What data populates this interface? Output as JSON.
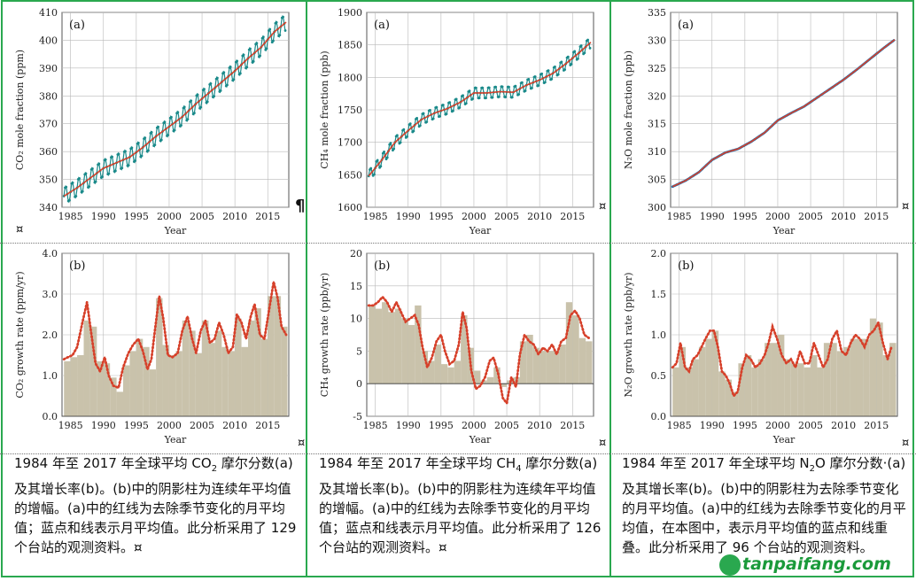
{
  "chart_data": [
    {
      "type": "line",
      "panel_label": "(a)",
      "ylabel": "CO₂ mole fraction (ppm)",
      "xlabel": "Year",
      "x_ticks": [
        "1985",
        "1990",
        "1995",
        "2000",
        "2005",
        "2010",
        "2015"
      ],
      "y_ticks": [
        "340",
        "350",
        "360",
        "370",
        "380",
        "390",
        "400",
        "410"
      ],
      "xlim": [
        1983.7,
        2018.2
      ],
      "ylim": [
        340,
        410
      ],
      "x": [
        1984,
        1986,
        1988,
        1990,
        1992,
        1994,
        1996,
        1998,
        2000,
        2002,
        2004,
        2006,
        2008,
        2010,
        2012,
        2014,
        2016,
        2017.8
      ],
      "series": [
        {
          "values": [
            344.0,
            347.0,
            350.5,
            354.0,
            356.0,
            358.0,
            361.5,
            365.5,
            369.0,
            372.5,
            377.0,
            381.0,
            385.0,
            389.0,
            393.5,
            397.5,
            403.0,
            406.5
          ],
          "color": "#d6402a"
        },
        {
          "values": [
            344.0,
            347.0,
            350.5,
            354.0,
            356.0,
            358.0,
            361.5,
            365.5,
            369.0,
            372.5,
            377.0,
            381.0,
            385.0,
            389.0,
            393.5,
            397.5,
            403.0,
            406.5
          ],
          "color": "#1a8a8a",
          "seasonal_amplitude": 3.2
        }
      ]
    },
    {
      "type": "line",
      "panel_label": "(a)",
      "ylabel": "CH₄ mole fraction (ppb)",
      "xlabel": "Year",
      "x_ticks": [
        "1985",
        "1990",
        "1995",
        "2000",
        "2005",
        "2010",
        "2015"
      ],
      "y_ticks": [
        "1600",
        "1650",
        "1700",
        "1750",
        "1800",
        "1850",
        "1900"
      ],
      "xlim": [
        1983.7,
        2018.2
      ],
      "ylim": [
        1600,
        1900
      ],
      "x": [
        1984,
        1986,
        1988,
        1990,
        1992,
        1994,
        1996,
        1998,
        2000,
        2002,
        2004,
        2006,
        2008,
        2010,
        2012,
        2014,
        2016,
        2017.8
      ],
      "series": [
        {
          "values": [
            1648,
            1673,
            1700,
            1718,
            1735,
            1745,
            1752,
            1762,
            1776,
            1776,
            1778,
            1777,
            1788,
            1796,
            1806,
            1821,
            1838,
            1854
          ],
          "color": "#d6402a"
        },
        {
          "values": [
            1648,
            1673,
            1700,
            1718,
            1735,
            1745,
            1752,
            1762,
            1776,
            1776,
            1778,
            1777,
            1788,
            1796,
            1806,
            1821,
            1838,
            1854
          ],
          "color": "#1a8a8a",
          "seasonal_amplitude": 9
        }
      ]
    },
    {
      "type": "line",
      "panel_label": "(a)",
      "ylabel": "N₂O mole fraction (ppb)",
      "xlabel": "Year",
      "x_ticks": [
        "1985",
        "1990",
        "1995",
        "2000",
        "2005",
        "2010",
        "2015"
      ],
      "y_ticks": [
        "300",
        "305",
        "310",
        "315",
        "320",
        "325",
        "330",
        "335"
      ],
      "xlim": [
        1983.7,
        2018.2
      ],
      "ylim": [
        300,
        335
      ],
      "x": [
        1984,
        1986,
        1988,
        1990,
        1992,
        1994,
        1996,
        1998,
        2000,
        2002,
        2004,
        2006,
        2008,
        2010,
        2012,
        2014,
        2016,
        2017.8
      ],
      "series": [
        {
          "values": [
            303.7,
            304.8,
            306.3,
            308.5,
            309.8,
            310.5,
            311.8,
            313.4,
            315.6,
            316.9,
            318.1,
            319.7,
            321.3,
            322.9,
            324.7,
            326.6,
            328.5,
            330.1
          ],
          "color": "#d6402a"
        },
        {
          "values": [
            303.7,
            304.8,
            306.3,
            308.5,
            309.8,
            310.5,
            311.8,
            313.4,
            315.6,
            316.9,
            318.1,
            319.7,
            321.3,
            322.9,
            324.7,
            326.6,
            328.5,
            330.1
          ],
          "color": "#1a6fb0",
          "seasonal_amplitude": 0
        }
      ]
    },
    {
      "type": "bar",
      "panel_label": "(b)",
      "ylabel": "CO₂ growth rate (ppm/yr)",
      "xlabel": "Year",
      "x_ticks": [
        "1985",
        "1990",
        "1995",
        "2000",
        "2005",
        "2010",
        "2015"
      ],
      "y_ticks": [
        "0.0",
        "1.0",
        "2.0",
        "3.0",
        "4.0"
      ],
      "xlim": [
        1983.7,
        2018.2
      ],
      "ylim": [
        0,
        4
      ],
      "categories": [
        1984,
        1985,
        1986,
        1987,
        1988,
        1989,
        1990,
        1991,
        1992,
        1993,
        1994,
        1995,
        1996,
        1997,
        1998,
        1999,
        2000,
        2001,
        2002,
        2003,
        2004,
        2005,
        2006,
        2007,
        2008,
        2009,
        2010,
        2011,
        2012,
        2013,
        2014,
        2015,
        2016,
        2017
      ],
      "values": [
        1.35,
        1.45,
        1.5,
        2.35,
        2.2,
        1.35,
        1.3,
        0.95,
        0.6,
        1.25,
        1.6,
        1.9,
        1.7,
        1.15,
        2.9,
        1.75,
        1.5,
        1.6,
        2.35,
        2.1,
        1.55,
        2.35,
        1.8,
        2.1,
        1.7,
        1.6,
        2.4,
        1.7,
        2.35,
        2.65,
        1.9,
        2.95,
        2.95,
        2.2
      ],
      "line_x": [
        1984,
        1984.6,
        1985.3,
        1986,
        1986.8,
        1987.5,
        1988.1,
        1988.8,
        1989.5,
        1990.2,
        1990.8,
        1991.5,
        1992.3,
        1993,
        1993.8,
        1994.5,
        1995.3,
        1996,
        1996.7,
        1997.3,
        1997.9,
        1998.5,
        1999.1,
        1999.8,
        2000.5,
        2001.3,
        2002,
        2002.8,
        2003.5,
        2004.1,
        2004.8,
        2005.5,
        2006.2,
        2006.9,
        2007.6,
        2008.3,
        2009,
        2009.7,
        2010.3,
        2011,
        2011.7,
        2012.4,
        2013,
        2013.8,
        2014.5,
        2015.2,
        2015.9,
        2016.5,
        2017.1,
        2017.8
      ],
      "line_y": [
        1.4,
        1.45,
        1.5,
        1.7,
        2.3,
        2.8,
        2.1,
        1.3,
        1.1,
        1.45,
        1.0,
        0.75,
        0.7,
        1.2,
        1.55,
        1.75,
        1.9,
        1.6,
        1.15,
        1.4,
        2.2,
        2.95,
        2.4,
        1.5,
        1.45,
        1.55,
        2.1,
        2.45,
        1.9,
        1.55,
        2.1,
        2.35,
        1.8,
        1.9,
        2.3,
        2.0,
        1.55,
        1.7,
        2.5,
        2.3,
        1.9,
        2.45,
        2.75,
        2.0,
        1.9,
        2.6,
        3.3,
        2.9,
        2.2,
        2.0
      ],
      "series": [
        {
          "color": "#d6402a"
        }
      ]
    },
    {
      "type": "bar",
      "panel_label": "(b)",
      "ylabel": "CH₄ growth rate (ppb/yr)",
      "xlabel": "Year",
      "x_ticks": [
        "1985",
        "1990",
        "1995",
        "2000",
        "2005",
        "2010",
        "2015"
      ],
      "y_ticks": [
        "-5",
        "0",
        "5",
        "10",
        "15",
        "20"
      ],
      "xlim": [
        1983.7,
        2018.2
      ],
      "ylim": [
        -5,
        20
      ],
      "categories": [
        1984,
        1985,
        1986,
        1987,
        1988,
        1989,
        1990,
        1991,
        1992,
        1993,
        1994,
        1995,
        1996,
        1997,
        1998,
        1999,
        2000,
        2001,
        2002,
        2003,
        2004,
        2005,
        2006,
        2007,
        2008,
        2009,
        2010,
        2011,
        2012,
        2013,
        2014,
        2015,
        2016,
        2017
      ],
      "values": [
        12.0,
        11.5,
        12.5,
        11.0,
        11.5,
        10.0,
        9.0,
        12.0,
        5.0,
        3.5,
        6.0,
        3.0,
        2.5,
        3.5,
        10.5,
        5.5,
        2.0,
        0.5,
        1.0,
        2.5,
        -0.5,
        0.5,
        1.0,
        6.5,
        7.5,
        5.5,
        5.0,
        5.0,
        5.0,
        6.0,
        12.5,
        10.5,
        7.0,
        6.5
      ],
      "line_x": [
        1984,
        1984.7,
        1985.4,
        1986.1,
        1986.8,
        1987.5,
        1988.2,
        1988.9,
        1989.6,
        1990.3,
        1991,
        1991.6,
        1992.2,
        1992.9,
        1993.6,
        1994.3,
        1995,
        1995.6,
        1996.3,
        1997,
        1997.7,
        1998.3,
        1998.9,
        1999.6,
        2000.3,
        2001,
        2001.7,
        2002.4,
        2003,
        2003.7,
        2004.4,
        2005,
        2005.7,
        2006.4,
        2007,
        2007.7,
        2008.4,
        2009.1,
        2009.8,
        2010.5,
        2011.2,
        2011.9,
        2012.6,
        2013.3,
        2014,
        2014.7,
        2015.4,
        2016.1,
        2016.8,
        2017.5
      ],
      "line_y": [
        12.0,
        12.0,
        12.5,
        13.3,
        12.5,
        11.0,
        12.5,
        11.0,
        9.5,
        10.0,
        10.5,
        9.0,
        5.5,
        2.5,
        4.0,
        6.5,
        7.5,
        5.0,
        3.0,
        3.5,
        6.0,
        11.0,
        8.5,
        2.0,
        -0.8,
        -0.3,
        1.0,
        3.5,
        4.0,
        1.5,
        -2.2,
        -3.0,
        1.0,
        -0.5,
        4.5,
        7.5,
        6.5,
        6.0,
        4.5,
        5.5,
        5.0,
        6.0,
        4.5,
        6.5,
        7.0,
        10.5,
        11.2,
        10.0,
        7.5,
        7.0
      ],
      "series": [
        {
          "color": "#d6402a"
        }
      ]
    },
    {
      "type": "bar",
      "panel_label": "(b)",
      "ylabel": "N₂O growth rate (ppb/yr)",
      "xlabel": "Year",
      "x_ticks": [
        "1985",
        "1990",
        "1995",
        "2000",
        "2005",
        "2010",
        "2015"
      ],
      "y_ticks": [
        "0.0",
        "0.5",
        "1.0",
        "1.5",
        "2.0"
      ],
      "xlim": [
        1983.7,
        2018.2
      ],
      "ylim": [
        0,
        2
      ],
      "categories": [
        1984,
        1985,
        1986,
        1987,
        1988,
        1989,
        1990,
        1991,
        1992,
        1993,
        1994,
        1995,
        1996,
        1997,
        1998,
        1999,
        2000,
        2001,
        2002,
        2003,
        2004,
        2005,
        2006,
        2007,
        2008,
        2009,
        2010,
        2011,
        2012,
        2013,
        2014,
        2015,
        2016,
        2017
      ],
      "values": [
        0.6,
        0.85,
        0.6,
        0.7,
        0.85,
        0.95,
        1.05,
        0.55,
        0.45,
        0.3,
        0.65,
        0.75,
        0.6,
        0.7,
        0.9,
        0.9,
        1.0,
        0.7,
        0.65,
        0.65,
        0.6,
        0.75,
        0.6,
        0.9,
        0.9,
        0.8,
        0.85,
        0.95,
        0.95,
        0.95,
        1.2,
        1.15,
        0.75,
        0.9
      ],
      "line_x": [
        1984,
        1984.6,
        1985.2,
        1985.9,
        1986.5,
        1987.1,
        1987.8,
        1988.4,
        1989,
        1989.7,
        1990.3,
        1990.9,
        1991.5,
        1992.1,
        1992.7,
        1993.3,
        1993.9,
        1994.6,
        1995.2,
        1995.9,
        1996.6,
        1997.3,
        1998,
        1998.6,
        1999.2,
        1999.9,
        2000.6,
        2001.3,
        2002,
        2002.7,
        2003.4,
        2004.1,
        2004.8,
        2005.5,
        2006.2,
        2006.9,
        2007.6,
        2008.3,
        2009,
        2009.7,
        2010.4,
        2011.1,
        2011.8,
        2012.5,
        2013.2,
        2013.9,
        2014.6,
        2015.3,
        2016,
        2016.7,
        2017.3
      ],
      "line_y": [
        0.6,
        0.65,
        0.9,
        0.6,
        0.55,
        0.7,
        0.75,
        0.85,
        0.95,
        1.05,
        1.05,
        0.85,
        0.55,
        0.5,
        0.4,
        0.25,
        0.3,
        0.6,
        0.75,
        0.7,
        0.6,
        0.65,
        0.75,
        0.9,
        1.1,
        0.95,
        0.75,
        0.65,
        0.7,
        0.6,
        0.8,
        0.65,
        0.65,
        0.9,
        0.75,
        0.6,
        0.7,
        0.95,
        1.05,
        0.8,
        0.75,
        0.9,
        1.0,
        0.95,
        0.85,
        1.0,
        1.05,
        1.15,
        0.9,
        0.7,
        0.85
      ],
      "series": [
        {
          "color": "#d6402a"
        }
      ]
    }
  ],
  "captions": {
    "co2": {
      "p1": "1984 年至 2017 年全球平均 CO",
      "sub": "2",
      "p2": " 摩尔分数(a)及其增长率(b)。(b)中的阴影柱为连续年平均值的增幅。(a)中的红线为去除季节变化的月平均值；蓝点和线表示月平均值。此分析采用了 129 个台站的观测资料。¤"
    },
    "ch4": {
      "p1": "1984 年至 2017 年全球平均 CH",
      "sub": "4",
      "p2": " 摩尔分数(a)及其增长率(b)。(b)中的阴影柱为连续年平均值的增幅。(a)中的红线为去除季节变化的月平均值；蓝点和线表示月平均值。此分析采用了 126 个台站的观测资料。¤"
    },
    "n2o": {
      "p1": "1984 年至 2017 年全球平均 N",
      "sub": "2",
      "p2": "O 摩尔分数·(a)及其增长率(b)。(b)中的阴影柱为去除季节变化的月平均值。(a)中的红线为去除季节变化的月平均值，在本图中，表示月平均值的蓝点和线重叠。此分析采用了 96 个台站的观测资料。"
    }
  },
  "marks": {
    "cell_end": "¤",
    "pilcrow": "¶"
  },
  "watermark": "tanpaifang.com",
  "colors": {
    "border": "#2aa84f",
    "bar_fill": "#c9c2ab",
    "red": "#d6402a",
    "teal": "#1a8a8a",
    "grid": "#b9b9b9"
  }
}
